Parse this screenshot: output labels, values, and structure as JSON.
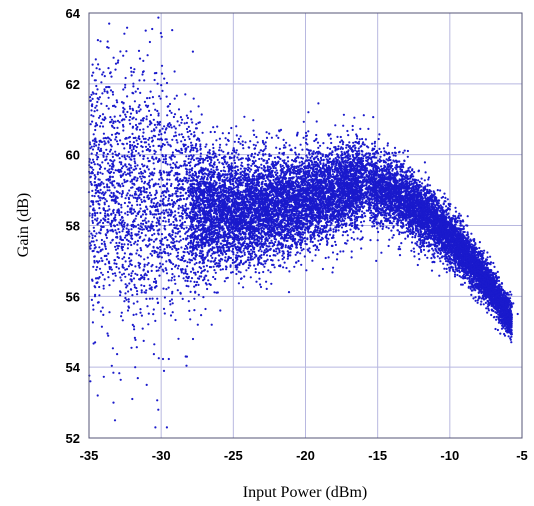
{
  "chart_data": {
    "type": "scatter",
    "title": "",
    "xlabel": "Input Power (dBm)",
    "ylabel": "Gain (dB)",
    "xlim": [
      -35,
      -5
    ],
    "ylim": [
      52,
      64
    ],
    "xticks": [
      -35,
      -30,
      -25,
      -20,
      -15,
      -10,
      -5
    ],
    "yticks": [
      52,
      54,
      56,
      58,
      60,
      62,
      64
    ],
    "grid": true,
    "marker_color": "#1a1acc",
    "grid_color": "#b8b8e0",
    "series": [
      {
        "points": [
          [
            -33.6,
            63.7
          ],
          [
            -34.2,
            63.2
          ],
          [
            -33.0,
            62.6
          ],
          [
            -34.6,
            62.1
          ],
          [
            -32.5,
            61.9
          ],
          [
            -31.5,
            61.4
          ],
          [
            -30.8,
            61.6
          ],
          [
            -29.8,
            60.8
          ],
          [
            -28.6,
            60.9
          ],
          [
            -21.7,
            60.7
          ],
          [
            -19.8,
            61.2
          ],
          [
            -17.5,
            60.4
          ],
          [
            -34.9,
            53.6
          ],
          [
            -34.4,
            53.2
          ],
          [
            -33.3,
            53.0
          ],
          [
            -32.0,
            53.1
          ],
          [
            -33.2,
            52.5
          ],
          [
            -30.4,
            52.3
          ],
          [
            -29.6,
            52.3
          ],
          [
            -31.0,
            53.5
          ],
          [
            -30.2,
            52.8
          ],
          [
            -31.8,
            54.0
          ],
          [
            -28.8,
            54.8
          ],
          [
            -28.3,
            54.3
          ],
          [
            -25.9,
            55.6
          ],
          [
            -26.5,
            55.2
          ],
          [
            -18.4,
            57.1
          ],
          [
            -15.1,
            57.0
          ],
          [
            -24.8,
            60.8
          ],
          [
            -23.4,
            60.5
          ],
          [
            -13.3,
            59.7
          ],
          [
            -6.0,
            56.1
          ],
          [
            -5.3,
            55.5
          ],
          [
            -5.6,
            55.8
          ]
        ]
      }
    ]
  }
}
